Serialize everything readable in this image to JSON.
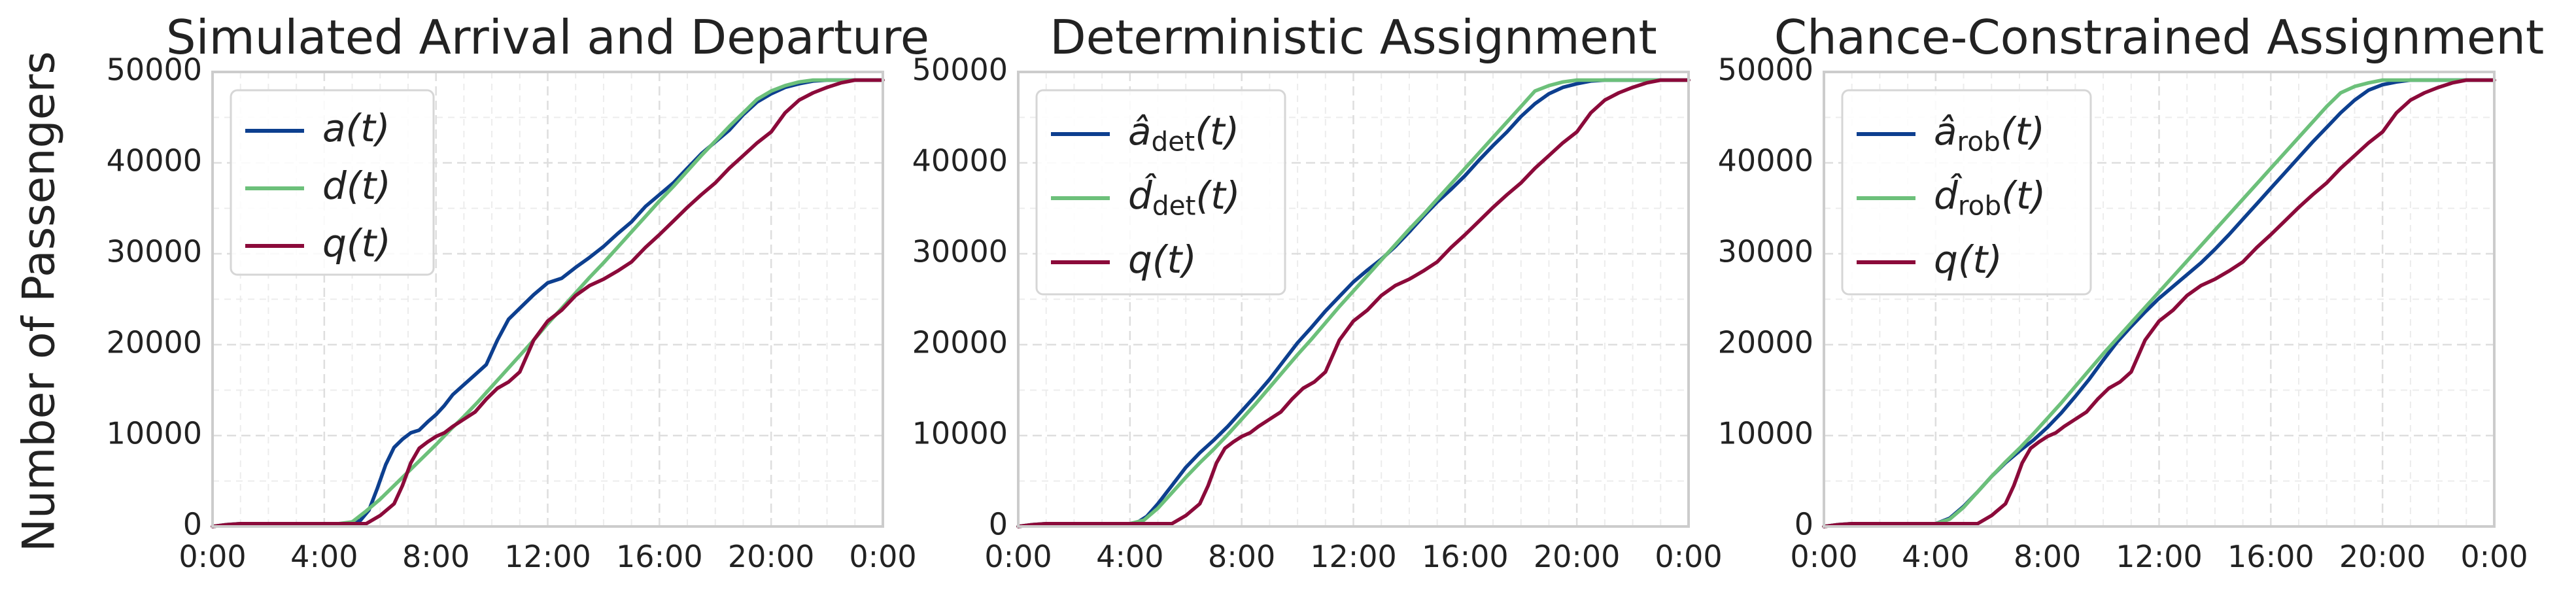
{
  "figure": {
    "ylabel": "Number of Passengers"
  },
  "chart_data": [
    {
      "type": "line",
      "title": "Simulated Arrival and Departure",
      "xlabel": "",
      "ylabel": "Number of Passengers",
      "xlim": [
        0,
        24
      ],
      "ylim": [
        0,
        50000
      ],
      "xticks": [
        "0:00",
        "4:00",
        "8:00",
        "12:00",
        "16:00",
        "20:00",
        "0:00"
      ],
      "yticks": [
        "0",
        "10000",
        "20000",
        "30000",
        "40000",
        "50000"
      ],
      "grid": true,
      "legend_position": "top-left",
      "series": [
        {
          "name": "a(t)",
          "color": "#0d3f8f",
          "x": [
            0,
            0.5,
            1,
            1.5,
            2,
            3,
            4,
            4.5,
            5,
            5.3,
            5.6,
            5.9,
            6.2,
            6.5,
            6.8,
            7.1,
            7.4,
            7.7,
            8,
            8.3,
            8.6,
            9,
            9.4,
            9.8,
            10.2,
            10.6,
            11,
            11.5,
            12,
            12.5,
            13,
            13.5,
            14,
            14.5,
            15,
            15.5,
            16,
            16.5,
            17,
            17.5,
            18,
            18.5,
            19,
            19.5,
            20,
            20.5,
            21,
            21.5,
            22,
            22.5,
            23,
            23.5,
            24
          ],
          "y": [
            0,
            200,
            300,
            300,
            300,
            300,
            300,
            300,
            300,
            700,
            1800,
            4200,
            6800,
            8700,
            9600,
            10300,
            10600,
            11500,
            12300,
            13300,
            14500,
            15600,
            16700,
            17800,
            20500,
            22800,
            24000,
            25500,
            26800,
            27300,
            28500,
            29600,
            30800,
            32200,
            33500,
            35200,
            36500,
            37800,
            39400,
            41000,
            42300,
            43600,
            45300,
            46700,
            47600,
            48300,
            48700,
            49000,
            49100,
            49100,
            49100,
            49100,
            49100
          ]
        },
        {
          "name": "d(t)",
          "color": "#6cc07a",
          "x": [
            0,
            0.5,
            1,
            1.5,
            2,
            3,
            4,
            4.5,
            5,
            5.5,
            6,
            6.5,
            7,
            7.5,
            8,
            8.5,
            9,
            9.5,
            10,
            10.5,
            11,
            11.5,
            12,
            12.5,
            13,
            13.5,
            14,
            14.5,
            15,
            15.5,
            16,
            16.5,
            17,
            17.5,
            18,
            18.5,
            19,
            19.5,
            20,
            20.5,
            21,
            21.5,
            22,
            22.5,
            23,
            23.5,
            24
          ],
          "y": [
            0,
            200,
            300,
            300,
            300,
            300,
            300,
            300,
            500,
            1700,
            3000,
            4500,
            6000,
            7500,
            9000,
            10600,
            12100,
            13700,
            15400,
            17100,
            18800,
            20500,
            22300,
            24000,
            25700,
            27400,
            29000,
            30700,
            32400,
            34100,
            35800,
            37400,
            39100,
            40800,
            42400,
            44000,
            45500,
            47000,
            47900,
            48500,
            48900,
            49100,
            49100,
            49100,
            49100,
            49100,
            49100
          ]
        },
        {
          "name": "q(t)",
          "color": "#8b0a3a",
          "x": [
            0,
            0.5,
            1,
            1.5,
            2,
            3,
            4,
            5,
            5.5,
            6,
            6.5,
            6.8,
            7.1,
            7.4,
            7.7,
            8,
            8.3,
            8.6,
            9,
            9.4,
            9.8,
            10.2,
            10.6,
            11,
            11.5,
            12,
            12.5,
            13,
            13.5,
            14,
            14.5,
            15,
            15.5,
            16,
            16.5,
            17,
            17.5,
            18,
            18.5,
            19,
            19.5,
            20,
            20.5,
            21,
            21.5,
            22,
            22.5,
            23,
            23.5,
            24
          ],
          "y": [
            0,
            200,
            300,
            300,
            300,
            300,
            300,
            300,
            300,
            1200,
            2500,
            4500,
            7000,
            8600,
            9300,
            9900,
            10300,
            11000,
            11800,
            12600,
            14000,
            15200,
            15900,
            17000,
            20500,
            22600,
            23800,
            25400,
            26500,
            27200,
            28100,
            29100,
            30700,
            32100,
            33600,
            35100,
            36500,
            37800,
            39400,
            40800,
            42200,
            43400,
            45500,
            46900,
            47700,
            48300,
            48800,
            49100,
            49100,
            49100
          ]
        }
      ]
    },
    {
      "type": "line",
      "title": "Deterministic Assignment",
      "xlabel": "",
      "ylabel": "",
      "xlim": [
        0,
        24
      ],
      "ylim": [
        0,
        50000
      ],
      "xticks": [
        "0:00",
        "4:00",
        "8:00",
        "12:00",
        "16:00",
        "20:00",
        "0:00"
      ],
      "yticks": [
        "0",
        "10000",
        "20000",
        "30000",
        "40000",
        "50000"
      ],
      "grid": true,
      "legend_position": "top-left",
      "series": [
        {
          "name": "â_det(t)",
          "color": "#0d3f8f",
          "x": [
            0,
            0.5,
            1,
            1.5,
            2,
            3,
            4,
            4.3,
            4.6,
            5,
            5.5,
            6,
            6.5,
            7,
            7.5,
            8,
            8.5,
            9,
            9.5,
            10,
            10.5,
            11,
            11.5,
            12,
            12.5,
            13,
            13.5,
            14,
            14.5,
            15,
            15.5,
            16,
            16.5,
            17,
            17.5,
            18,
            18.5,
            19,
            19.5,
            20,
            20.5,
            21,
            21.5,
            22,
            22.5,
            23,
            23.5,
            24
          ],
          "y": [
            0,
            200,
            300,
            300,
            300,
            300,
            300,
            500,
            1100,
            2500,
            4500,
            6500,
            8100,
            9500,
            11000,
            12700,
            14400,
            16200,
            18200,
            20200,
            21900,
            23700,
            25300,
            26900,
            28200,
            29400,
            30800,
            32400,
            34100,
            35700,
            37100,
            38600,
            40300,
            41900,
            43400,
            45100,
            46500,
            47600,
            48300,
            48700,
            49000,
            49100,
            49100,
            49100,
            49100,
            49100,
            49100,
            49100
          ]
        },
        {
          "name": "d̂_det(t)",
          "color": "#6cc07a",
          "x": [
            0,
            0.5,
            1,
            1.5,
            2,
            3,
            4,
            4.5,
            5,
            5.5,
            6,
            6.5,
            7,
            7.5,
            8,
            8.5,
            9,
            9.5,
            10,
            10.5,
            11,
            11.5,
            12,
            12.5,
            13,
            13.5,
            14,
            14.5,
            15,
            15.5,
            16,
            16.5,
            17,
            17.5,
            18,
            18.5,
            19,
            19.5,
            20,
            20.5,
            21,
            21.5,
            22,
            22.5,
            23,
            23.5,
            24
          ],
          "y": [
            0,
            200,
            300,
            300,
            300,
            300,
            300,
            700,
            2000,
            3700,
            5400,
            7000,
            8500,
            10100,
            11800,
            13500,
            15300,
            17100,
            18900,
            20600,
            22400,
            24200,
            25900,
            27600,
            29300,
            31000,
            32700,
            34300,
            36000,
            37700,
            39400,
            41100,
            42800,
            44500,
            46200,
            47900,
            48500,
            48900,
            49100,
            49100,
            49100,
            49100,
            49100,
            49100,
            49100,
            49100,
            49100
          ]
        },
        {
          "name": "q(t)",
          "color": "#8b0a3a",
          "x": [
            0,
            0.5,
            1,
            1.5,
            2,
            3,
            4,
            5,
            5.5,
            6,
            6.5,
            6.8,
            7.1,
            7.4,
            7.7,
            8,
            8.3,
            8.6,
            9,
            9.4,
            9.8,
            10.2,
            10.6,
            11,
            11.5,
            12,
            12.5,
            13,
            13.5,
            14,
            14.5,
            15,
            15.5,
            16,
            16.5,
            17,
            17.5,
            18,
            18.5,
            19,
            19.5,
            20,
            20.5,
            21,
            21.5,
            22,
            22.5,
            23,
            23.5,
            24
          ],
          "y": [
            0,
            200,
            300,
            300,
            300,
            300,
            300,
            300,
            300,
            1200,
            2500,
            4500,
            7000,
            8600,
            9300,
            9900,
            10300,
            11000,
            11800,
            12600,
            14000,
            15200,
            15900,
            17000,
            20500,
            22600,
            23800,
            25400,
            26500,
            27200,
            28100,
            29100,
            30700,
            32100,
            33600,
            35100,
            36500,
            37800,
            39400,
            40800,
            42200,
            43400,
            45500,
            46900,
            47700,
            48300,
            48800,
            49100,
            49100,
            49100
          ]
        }
      ]
    },
    {
      "type": "line",
      "title": "Chance-Constrained Assignment",
      "xlabel": "",
      "ylabel": "",
      "xlim": [
        0,
        24
      ],
      "ylim": [
        0,
        50000
      ],
      "xticks": [
        "0:00",
        "4:00",
        "8:00",
        "12:00",
        "16:00",
        "20:00",
        "0:00"
      ],
      "yticks": [
        "0",
        "10000",
        "20000",
        "30000",
        "40000",
        "50000"
      ],
      "grid": true,
      "legend_position": "top-left",
      "series": [
        {
          "name": "â_rob(t)",
          "color": "#0d3f8f",
          "x": [
            0,
            0.5,
            1,
            1.5,
            2,
            3,
            4,
            4.5,
            5,
            5.5,
            6,
            6.5,
            7,
            7.5,
            8,
            8.5,
            9,
            9.5,
            10,
            10.5,
            11,
            11.5,
            12,
            12.5,
            13,
            13.5,
            14,
            14.5,
            15,
            15.5,
            16,
            16.5,
            17,
            17.5,
            18,
            18.5,
            19,
            19.5,
            20,
            20.5,
            21,
            21.5,
            22,
            22.5,
            23,
            23.5,
            24
          ],
          "y": [
            0,
            200,
            300,
            300,
            300,
            300,
            300,
            900,
            2200,
            3800,
            5500,
            7000,
            8300,
            9500,
            10900,
            12500,
            14300,
            16200,
            18300,
            20300,
            22000,
            23600,
            25100,
            26400,
            27700,
            29000,
            30500,
            32100,
            33800,
            35500,
            37200,
            38900,
            40600,
            42300,
            43900,
            45500,
            46900,
            48000,
            48600,
            48900,
            49100,
            49100,
            49100,
            49100,
            49100,
            49100,
            49100
          ]
        },
        {
          "name": "d̂_rob(t)",
          "color": "#6cc07a",
          "x": [
            0,
            0.5,
            1,
            1.5,
            2,
            3,
            4,
            4.5,
            5,
            5.5,
            6,
            6.5,
            7,
            7.5,
            8,
            8.5,
            9,
            9.5,
            10,
            10.5,
            11,
            11.5,
            12,
            12.5,
            13,
            13.5,
            14,
            14.5,
            15,
            15.5,
            16,
            16.5,
            17,
            17.5,
            18,
            18.5,
            19,
            19.5,
            20,
            20.5,
            21,
            21.5,
            22,
            22.5,
            23,
            23.5,
            24
          ],
          "y": [
            0,
            200,
            300,
            300,
            300,
            300,
            300,
            800,
            2100,
            3800,
            5500,
            7100,
            8600,
            10200,
            11900,
            13600,
            15400,
            17200,
            19000,
            20700,
            22400,
            24100,
            25800,
            27500,
            29200,
            30900,
            32600,
            34300,
            36000,
            37700,
            39400,
            41100,
            42800,
            44500,
            46200,
            47700,
            48400,
            48800,
            49100,
            49100,
            49100,
            49100,
            49100,
            49100,
            49100,
            49100,
            49100
          ]
        },
        {
          "name": "q(t)",
          "color": "#8b0a3a",
          "x": [
            0,
            0.5,
            1,
            1.5,
            2,
            3,
            4,
            5,
            5.5,
            6,
            6.5,
            6.8,
            7.1,
            7.4,
            7.7,
            8,
            8.3,
            8.6,
            9,
            9.4,
            9.8,
            10.2,
            10.6,
            11,
            11.5,
            12,
            12.5,
            13,
            13.5,
            14,
            14.5,
            15,
            15.5,
            16,
            16.5,
            17,
            17.5,
            18,
            18.5,
            19,
            19.5,
            20,
            20.5,
            21,
            21.5,
            22,
            22.5,
            23,
            23.5,
            24
          ],
          "y": [
            0,
            200,
            300,
            300,
            300,
            300,
            300,
            300,
            300,
            1200,
            2500,
            4500,
            7000,
            8600,
            9300,
            9900,
            10300,
            11000,
            11800,
            12600,
            14000,
            15200,
            15900,
            17000,
            20500,
            22600,
            23800,
            25400,
            26500,
            27200,
            28100,
            29100,
            30700,
            32100,
            33600,
            35100,
            36500,
            37800,
            39400,
            40800,
            42200,
            43400,
            45500,
            46900,
            47700,
            48300,
            48800,
            49100,
            49100,
            49100
          ]
        }
      ]
    }
  ]
}
